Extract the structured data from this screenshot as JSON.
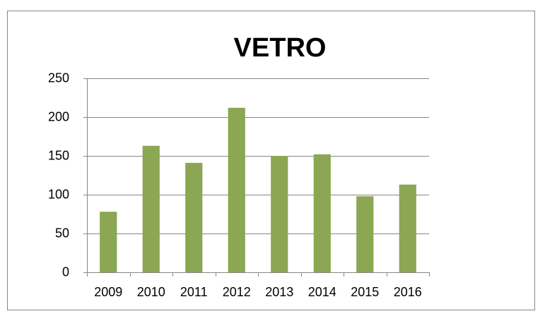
{
  "chart_data": {
    "type": "bar",
    "title": "VETRO",
    "categories": [
      "2009",
      "2010",
      "2011",
      "2012",
      "2013",
      "2014",
      "2015",
      "2016"
    ],
    "values": [
      78,
      163,
      141,
      212,
      150,
      152,
      98,
      113
    ],
    "color": "#8ba753",
    "ylim": [
      0,
      250
    ],
    "yticks": [
      0,
      50,
      100,
      150,
      200,
      250
    ],
    "grid": true
  }
}
